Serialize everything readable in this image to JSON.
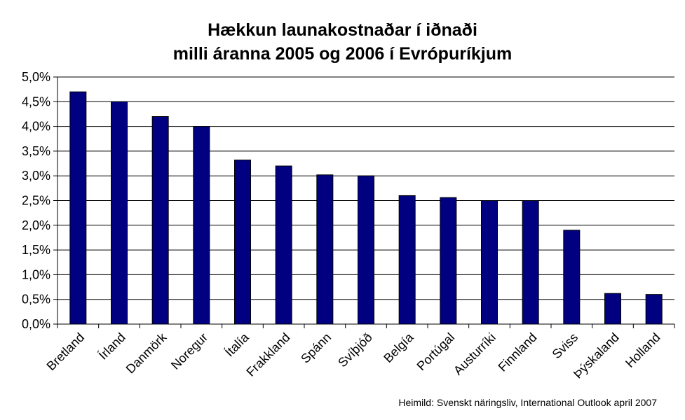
{
  "chart_data": {
    "type": "bar",
    "title_lines": [
      "Hækkun launakostnaðar í iðnaði",
      "milli áranna 2005 og 2006 í Evrópuríkjum"
    ],
    "categories": [
      "Bretland",
      "Írland",
      "Danmörk",
      "Noregur",
      "Ítalía",
      "Frakkland",
      "Spánn",
      "Svíþjóð",
      "Belgía",
      "Portúgal",
      "Austurríki",
      "Finnland",
      "Sviss",
      "Þýskaland",
      "Holland"
    ],
    "values": [
      4.7,
      4.5,
      4.2,
      4.0,
      3.32,
      3.2,
      3.02,
      3.0,
      2.6,
      2.56,
      2.5,
      2.5,
      1.9,
      0.62,
      0.6
    ],
    "ylim": [
      0,
      5
    ],
    "ytick_step": 0.5,
    "ytick_format": "percent-comma-1",
    "grid": true,
    "bar_color": "#000080",
    "source": "Heimild:  Svenskt näringsliv, International Outlook april 2007"
  }
}
